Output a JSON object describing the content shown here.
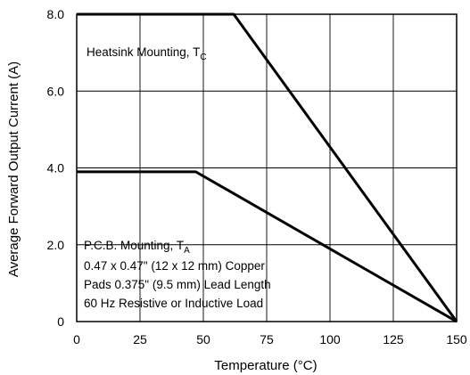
{
  "chart_data": {
    "type": "line",
    "xlabel": "Temperature (°C)",
    "ylabel": "Average Forward Output Current (A)",
    "xlim": [
      0,
      150
    ],
    "ylim": [
      0,
      8.0
    ],
    "x_ticks": [
      "0",
      "25",
      "50",
      "75",
      "100",
      "125",
      "150"
    ],
    "y_ticks": [
      "0",
      "2.0",
      "4.0",
      "6.0",
      "8.0"
    ],
    "grid": true,
    "series": [
      {
        "name": "Heatsink Mounting, TC",
        "x": [
          0,
          62,
          150
        ],
        "y": [
          8.0,
          8.0,
          0
        ]
      },
      {
        "name": "P.C.B. Mounting, TA",
        "x": [
          0,
          47,
          150
        ],
        "y": [
          3.9,
          3.9,
          0
        ]
      }
    ],
    "annotations": {
      "heatsink": {
        "main": "Heatsink Mounting, T",
        "sub": "C"
      },
      "pcb": {
        "main": "P.C.B. Mounting, T",
        "sub": "A",
        "lines": [
          "0.47 x 0.47\" (12 x 12 mm) Copper",
          "Pads 0.375\" (9.5 mm) Lead Length",
          "60 Hz Resistive or Inductive Load"
        ]
      }
    }
  }
}
